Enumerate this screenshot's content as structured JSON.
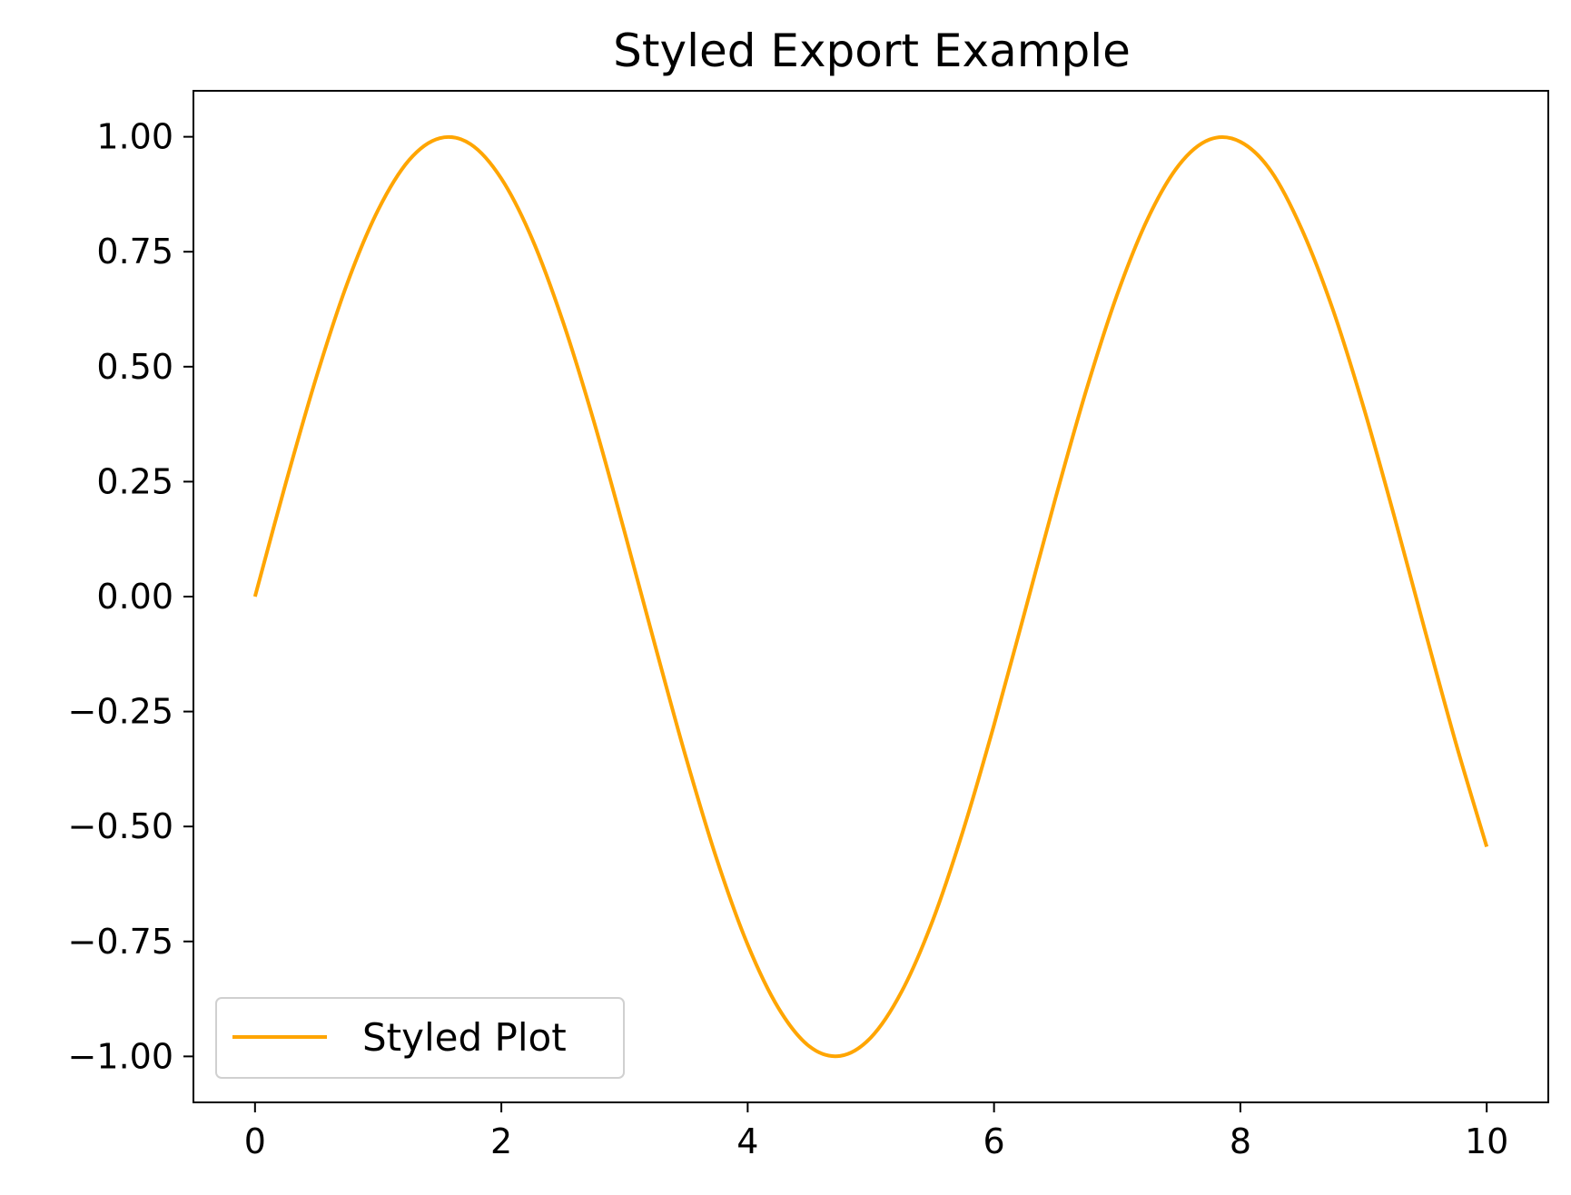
{
  "chart_data": {
    "type": "line",
    "title": "Styled Export Example",
    "xlabel": "",
    "ylabel": "",
    "xlim": [
      -0.5,
      10.5
    ],
    "ylim": [
      -1.1,
      1.1
    ],
    "xticks": [
      0,
      2,
      4,
      6,
      8,
      10
    ],
    "xtick_labels": [
      "0",
      "2",
      "4",
      "6",
      "8",
      "10"
    ],
    "yticks": [
      1.0,
      0.75,
      0.5,
      0.25,
      0.0,
      -0.25,
      -0.5,
      -0.75,
      -1.0
    ],
    "ytick_labels": [
      "1.00",
      "0.75",
      "0.50",
      "0.25",
      "0.00",
      "−0.25",
      "−0.50",
      "−0.75",
      "−1.00"
    ],
    "grid": false,
    "legend_position": "lower-left",
    "series": [
      {
        "name": "Styled Plot",
        "color": "#ffa500",
        "x": [
          0,
          0.25,
          0.5,
          0.75,
          1,
          1.25,
          1.5,
          1.75,
          2,
          2.25,
          2.5,
          2.75,
          3,
          3.25,
          3.5,
          3.75,
          4,
          4.25,
          4.5,
          4.75,
          5,
          5.25,
          5.5,
          5.75,
          6,
          6.25,
          6.5,
          6.75,
          7,
          7.25,
          7.5,
          7.75,
          8,
          8.25,
          8.5,
          8.75,
          9,
          9.25,
          9.5,
          9.75,
          10
        ],
        "y": [
          0.0,
          0.247,
          0.479,
          0.682,
          0.841,
          0.949,
          0.997,
          0.984,
          0.909,
          0.778,
          0.598,
          0.382,
          0.141,
          -0.108,
          -0.351,
          -0.572,
          -0.757,
          -0.895,
          -0.978,
          -0.999,
          -0.959,
          -0.859,
          -0.706,
          -0.508,
          -0.279,
          -0.033,
          0.215,
          0.45,
          0.657,
          0.823,
          0.938,
          0.994,
          0.989,
          0.925,
          0.798,
          0.625,
          0.412,
          0.174,
          -0.075,
          -0.319,
          -0.544
        ]
      }
    ]
  }
}
